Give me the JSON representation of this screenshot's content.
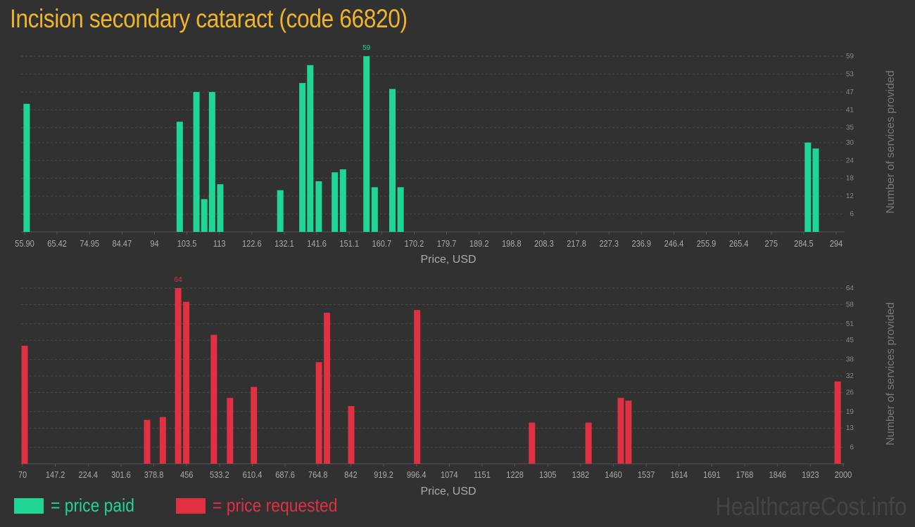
{
  "title": "Incision secondary cataract (code 66820)",
  "legend": {
    "paid_label": "= price paid",
    "requested_label": "= price requested"
  },
  "watermark": "HealthcareCost.info",
  "colors": {
    "paid": "#1fd696",
    "requested": "#e03041",
    "title": "#f0b429"
  },
  "chart_data": [
    {
      "type": "bar",
      "name": "price paid",
      "color": "#1fd696",
      "xlabel": "Price, USD",
      "ylabel": "Number of services provided",
      "xlim": [
        55.9,
        294
      ],
      "ylim": [
        0,
        59
      ],
      "x_ticks": [
        "55.90",
        "65.42",
        "74.95",
        "84.47",
        "94",
        "103.5",
        "113",
        "122.6",
        "132.1",
        "141.6",
        "151.1",
        "160.7",
        "170.2",
        "179.7",
        "189.2",
        "198.8",
        "208.3",
        "217.8",
        "227.3",
        "236.9",
        "246.4",
        "255.9",
        "265.4",
        "275",
        "284.5",
        "294"
      ],
      "y_ticks": [
        6,
        12,
        18,
        24,
        30,
        35,
        41,
        47,
        53,
        59
      ],
      "peak_label": "59",
      "points": [
        {
          "x": 56.5,
          "y": 43
        },
        {
          "x": 101.4,
          "y": 37
        },
        {
          "x": 106.3,
          "y": 47
        },
        {
          "x": 108.6,
          "y": 11
        },
        {
          "x": 110.9,
          "y": 47
        },
        {
          "x": 113.3,
          "y": 16
        },
        {
          "x": 130.9,
          "y": 14
        },
        {
          "x": 137.4,
          "y": 50
        },
        {
          "x": 139.7,
          "y": 56
        },
        {
          "x": 142.2,
          "y": 17
        },
        {
          "x": 146.9,
          "y": 20
        },
        {
          "x": 149.3,
          "y": 21
        },
        {
          "x": 156.2,
          "y": 59
        },
        {
          "x": 158.6,
          "y": 15
        },
        {
          "x": 163.8,
          "y": 48
        },
        {
          "x": 166.2,
          "y": 15
        },
        {
          "x": 285.7,
          "y": 30
        },
        {
          "x": 288.0,
          "y": 28
        }
      ]
    },
    {
      "type": "bar",
      "name": "price requested",
      "color": "#e03041",
      "xlabel": "Price, USD",
      "ylabel": "Number of services provided",
      "xlim": [
        70,
        2000
      ],
      "ylim": [
        0,
        64
      ],
      "x_ticks": [
        "70",
        "147.2",
        "224.4",
        "301.6",
        "378.8",
        "456",
        "533.2",
        "610.4",
        "687.6",
        "764.8",
        "842",
        "919.2",
        "996.4",
        "1074",
        "1151",
        "1228",
        "1305",
        "1382",
        "1460",
        "1537",
        "1614",
        "1691",
        "1768",
        "1846",
        "1923",
        "2000"
      ],
      "y_ticks": [
        6,
        13,
        19,
        26,
        32,
        38,
        45,
        51,
        58,
        64
      ],
      "peak_label": "64",
      "points": [
        {
          "x": 75,
          "y": 43
        },
        {
          "x": 363,
          "y": 16
        },
        {
          "x": 400,
          "y": 17
        },
        {
          "x": 436,
          "y": 64
        },
        {
          "x": 455,
          "y": 59
        },
        {
          "x": 520,
          "y": 47
        },
        {
          "x": 558,
          "y": 24
        },
        {
          "x": 614,
          "y": 28
        },
        {
          "x": 767,
          "y": 37
        },
        {
          "x": 786,
          "y": 55
        },
        {
          "x": 843,
          "y": 21
        },
        {
          "x": 998,
          "y": 56
        },
        {
          "x": 1268,
          "y": 15
        },
        {
          "x": 1401,
          "y": 15
        },
        {
          "x": 1477,
          "y": 24
        },
        {
          "x": 1495,
          "y": 23
        },
        {
          "x": 1987,
          "y": 30
        }
      ]
    }
  ]
}
